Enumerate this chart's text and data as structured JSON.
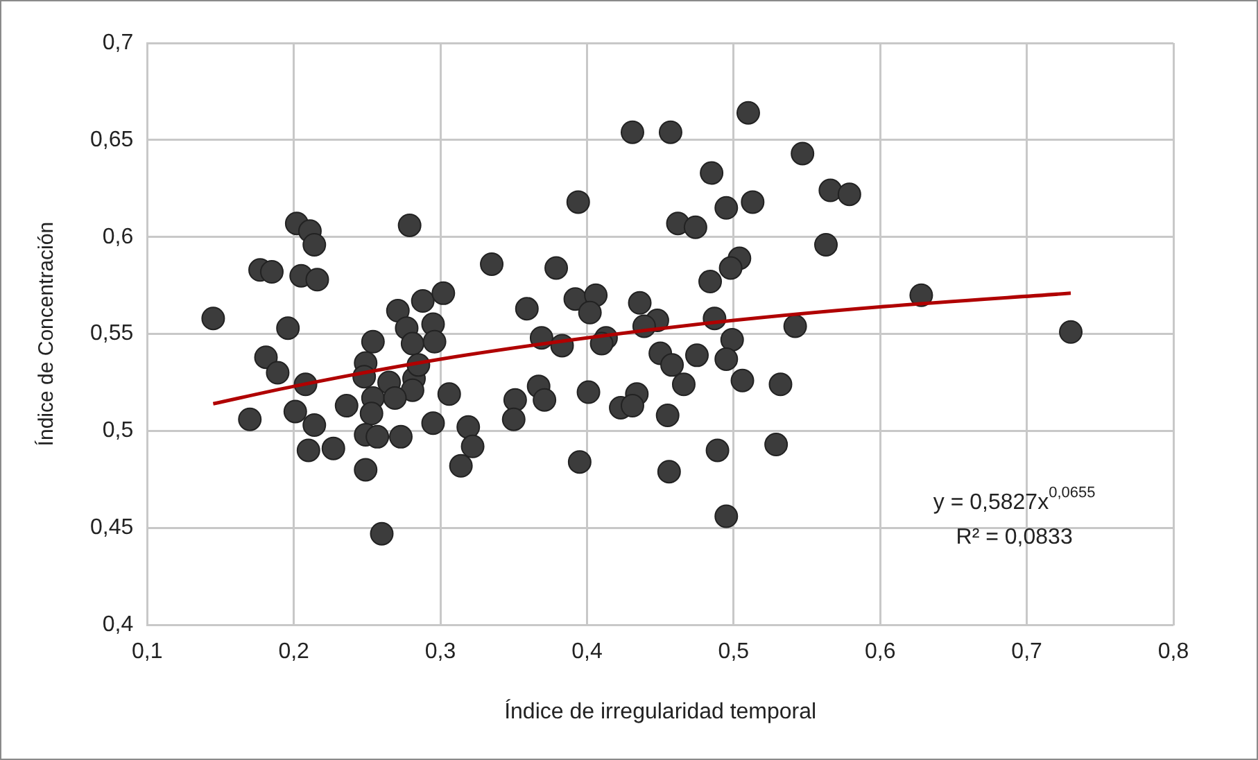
{
  "chart_data": {
    "type": "scatter",
    "xlabel": "Índice de irregularidad temporal",
    "ylabel": "Índice de Concentración",
    "xlim": [
      0.1,
      0.8
    ],
    "xticks": [
      {
        "value": 0.1,
        "label": "0,1"
      },
      {
        "value": 0.2,
        "label": "0,2"
      },
      {
        "value": 0.3,
        "label": "0,3"
      },
      {
        "value": 0.4,
        "label": "0,4"
      },
      {
        "value": 0.5,
        "label": "0,5"
      },
      {
        "value": 0.6,
        "label": "0,6"
      },
      {
        "value": 0.7,
        "label": "0,7"
      },
      {
        "value": 0.8,
        "label": "0,8"
      }
    ],
    "ylim": [
      0.4,
      0.7
    ],
    "yticks": [
      {
        "value": 0.4,
        "label": "0,4"
      },
      {
        "value": 0.45,
        "label": "0,45"
      },
      {
        "value": 0.5,
        "label": "0,5"
      },
      {
        "value": 0.55,
        "label": "0,55"
      },
      {
        "value": 0.6,
        "label": "0,6"
      },
      {
        "value": 0.65,
        "label": "0,65"
      },
      {
        "value": 0.7,
        "label": "0,7"
      }
    ],
    "grid": true,
    "legend": false,
    "annotations": [
      "y = 0,5827x$^{0,0655}$",
      "R² = 0,0833"
    ],
    "series": [
      {
        "marker": "circle",
        "color": "#3c3c3c",
        "x": [
          0.202,
          0.211,
          0.214,
          0.279,
          0.177,
          0.185,
          0.205,
          0.216,
          0.145,
          0.196,
          0.271,
          0.288,
          0.302,
          0.254,
          0.277,
          0.295,
          0.281,
          0.296,
          0.181,
          0.189,
          0.208,
          0.249,
          0.248,
          0.265,
          0.282,
          0.285,
          0.281,
          0.254,
          0.236,
          0.269,
          0.253,
          0.306,
          0.17,
          0.201,
          0.214,
          0.249,
          0.257,
          0.273,
          0.295,
          0.319,
          0.322,
          0.314,
          0.21,
          0.227,
          0.249,
          0.26,
          0.431,
          0.457,
          0.51,
          0.547,
          0.485,
          0.394,
          0.495,
          0.513,
          0.462,
          0.474,
          0.335,
          0.379,
          0.504,
          0.498,
          0.484,
          0.359,
          0.392,
          0.406,
          0.402,
          0.436,
          0.448,
          0.369,
          0.383,
          0.413,
          0.41,
          0.439,
          0.487,
          0.499,
          0.45,
          0.458,
          0.475,
          0.495,
          0.466,
          0.506,
          0.532,
          0.542,
          0.351,
          0.35,
          0.367,
          0.371,
          0.401,
          0.423,
          0.434,
          0.431,
          0.455,
          0.395,
          0.456,
          0.489,
          0.529,
          0.495,
          0.566,
          0.579,
          0.563,
          0.628,
          0.73
        ],
        "values": [
          0.607,
          0.603,
          0.596,
          0.606,
          0.583,
          0.582,
          0.58,
          0.578,
          0.558,
          0.553,
          0.562,
          0.567,
          0.571,
          0.546,
          0.553,
          0.555,
          0.545,
          0.546,
          0.538,
          0.53,
          0.524,
          0.535,
          0.528,
          0.525,
          0.527,
          0.534,
          0.521,
          0.517,
          0.513,
          0.517,
          0.509,
          0.519,
          0.506,
          0.51,
          0.503,
          0.498,
          0.497,
          0.497,
          0.504,
          0.502,
          0.492,
          0.482,
          0.49,
          0.491,
          0.48,
          0.447,
          0.654,
          0.654,
          0.664,
          0.643,
          0.633,
          0.618,
          0.615,
          0.618,
          0.607,
          0.605,
          0.586,
          0.584,
          0.589,
          0.584,
          0.577,
          0.563,
          0.568,
          0.57,
          0.561,
          0.566,
          0.557,
          0.548,
          0.544,
          0.548,
          0.545,
          0.554,
          0.558,
          0.547,
          0.54,
          0.534,
          0.539,
          0.537,
          0.524,
          0.526,
          0.524,
          0.554,
          0.516,
          0.506,
          0.523,
          0.516,
          0.52,
          0.512,
          0.519,
          0.513,
          0.508,
          0.484,
          0.479,
          0.49,
          0.493,
          0.456,
          0.624,
          0.622,
          0.596,
          0.57,
          0.551
        ]
      },
      {
        "type": "line",
        "marker": "none",
        "color": "#b00000",
        "x": [
          0.145,
          0.2,
          0.3,
          0.4,
          0.5,
          0.6,
          0.73
        ],
        "values": [
          0.514,
          0.523,
          0.537,
          0.548,
          0.557,
          0.564,
          0.571
        ]
      }
    ]
  }
}
